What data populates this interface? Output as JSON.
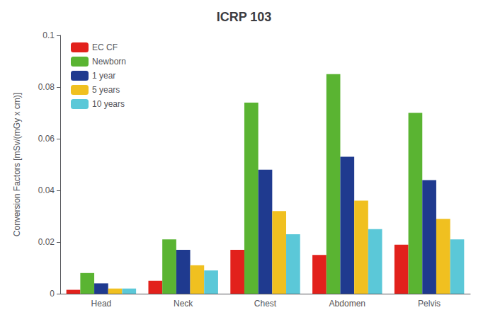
{
  "chart_data": {
    "type": "bar",
    "title": "ICRP 103",
    "ylabel": "Conversion Factors [mSv/(mGy x cm)]",
    "categories": [
      "Head",
      "Neck",
      "Chest",
      "Abdomen",
      "Pelvis"
    ],
    "series": [
      {
        "name": "EC CF",
        "color": "#e2211c",
        "values": [
          0.0015,
          0.005,
          0.017,
          0.015,
          0.019
        ]
      },
      {
        "name": "Newborn",
        "color": "#5ab432",
        "values": [
          0.008,
          0.021,
          0.074,
          0.085,
          0.07
        ]
      },
      {
        "name": "1 year",
        "color": "#1f3a8f",
        "values": [
          0.004,
          0.017,
          0.048,
          0.053,
          0.044
        ]
      },
      {
        "name": "5 years",
        "color": "#f0c020",
        "values": [
          0.002,
          0.011,
          0.032,
          0.036,
          0.029
        ]
      },
      {
        "name": "10 years",
        "color": "#5bc8d8",
        "values": [
          0.002,
          0.009,
          0.023,
          0.025,
          0.021
        ]
      }
    ],
    "ylim": [
      0,
      0.1
    ],
    "yticks": [
      0,
      0.02,
      0.04,
      0.06,
      0.08,
      0.1
    ],
    "grid": false,
    "legend": "upper left"
  }
}
